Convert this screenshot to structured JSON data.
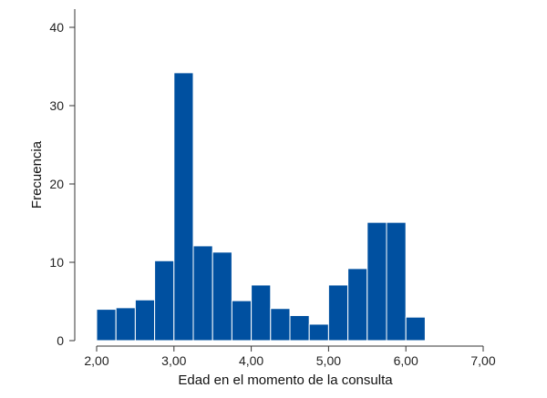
{
  "chart_data": {
    "type": "bar",
    "subtype": "histogram",
    "title": "",
    "xlabel": "Edad en el momento de la consulta",
    "ylabel": "Frecuencia",
    "xlim": [
      2.0,
      7.0
    ],
    "ylim": [
      0,
      40
    ],
    "bin_width": 0.25,
    "bins": [
      {
        "start": 2.0,
        "end": 2.25,
        "value": 4
      },
      {
        "start": 2.25,
        "end": 2.5,
        "value": 4.2
      },
      {
        "start": 2.5,
        "end": 2.75,
        "value": 5.2
      },
      {
        "start": 2.75,
        "end": 3.0,
        "value": 10.2
      },
      {
        "start": 3.0,
        "end": 3.25,
        "value": 34.2
      },
      {
        "start": 3.25,
        "end": 3.5,
        "value": 12.1
      },
      {
        "start": 3.5,
        "end": 3.75,
        "value": 11.3
      },
      {
        "start": 3.75,
        "end": 4.0,
        "value": 5.1
      },
      {
        "start": 4.0,
        "end": 4.25,
        "value": 7.1
      },
      {
        "start": 4.25,
        "end": 4.5,
        "value": 4.1
      },
      {
        "start": 4.5,
        "end": 4.75,
        "value": 3.2
      },
      {
        "start": 4.75,
        "end": 5.0,
        "value": 2.1
      },
      {
        "start": 5.0,
        "end": 5.25,
        "value": 7.1
      },
      {
        "start": 5.25,
        "end": 5.5,
        "value": 9.2
      },
      {
        "start": 5.5,
        "end": 5.75,
        "value": 15.1
      },
      {
        "start": 5.75,
        "end": 6.0,
        "value": 15.1
      },
      {
        "start": 6.0,
        "end": 6.25,
        "value": 3.0
      }
    ],
    "x_ticks": [
      {
        "value": 2.0,
        "label": "2,00"
      },
      {
        "value": 3.0,
        "label": "3,00"
      },
      {
        "value": 4.0,
        "label": "4,00"
      },
      {
        "value": 5.0,
        "label": "5,00"
      },
      {
        "value": 6.0,
        "label": "6,00"
      },
      {
        "value": 7.0,
        "label": "7,00"
      }
    ],
    "y_ticks": [
      {
        "value": 0,
        "label": "0"
      },
      {
        "value": 10,
        "label": "10"
      },
      {
        "value": 20,
        "label": "20"
      },
      {
        "value": 30,
        "label": "30"
      },
      {
        "value": 40,
        "label": "40"
      }
    ],
    "bar_color": "#0050A0",
    "grid": false,
    "legend": "none"
  }
}
